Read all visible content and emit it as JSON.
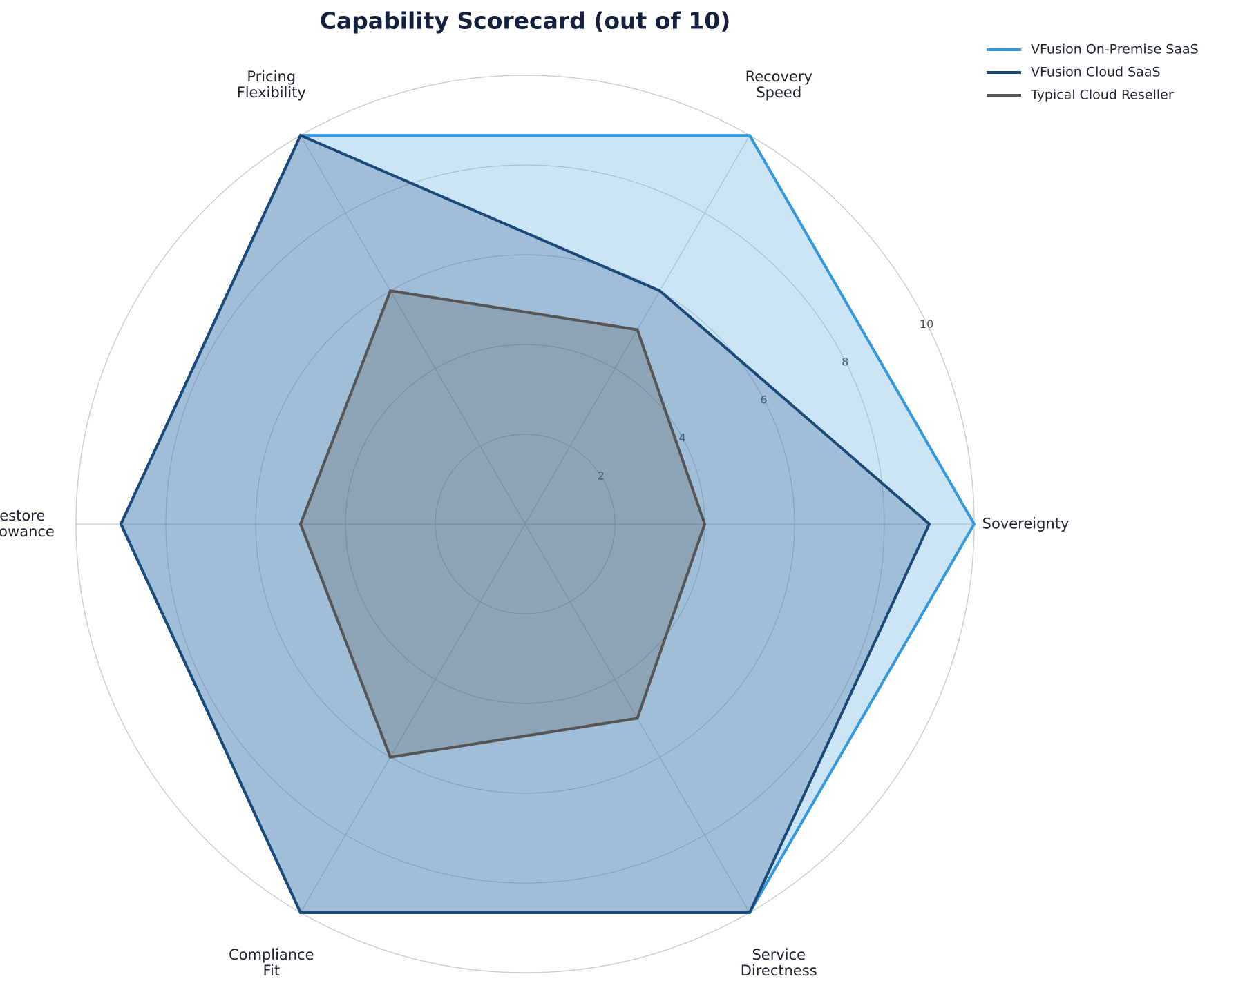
{
  "chart_data": {
    "type": "radar",
    "title": "Capability Scorecard (out of 10)",
    "categories": [
      "Sovereignty",
      "Recovery\nSpeed",
      "Pricing\nFlexibility",
      "Restore\nAllowance",
      "Compliance\nFit",
      "Service\nDirectness"
    ],
    "series": [
      {
        "name": "VFusion On-Premise SaaS",
        "color": "#3498db",
        "values": [
          10,
          10,
          10,
          9,
          10,
          10
        ]
      },
      {
        "name": "VFusion Cloud SaaS",
        "color": "#1b4a7a",
        "values": [
          9,
          6,
          10,
          9,
          10,
          10
        ]
      },
      {
        "name": "Typical Cloud Reseller",
        "color": "#555555",
        "values": [
          4,
          5,
          6,
          5,
          6,
          5
        ]
      }
    ],
    "ylim": [
      0,
      10
    ],
    "yticks": [
      2,
      4,
      6,
      8,
      10
    ],
    "grid": true,
    "legend": "upper right"
  }
}
